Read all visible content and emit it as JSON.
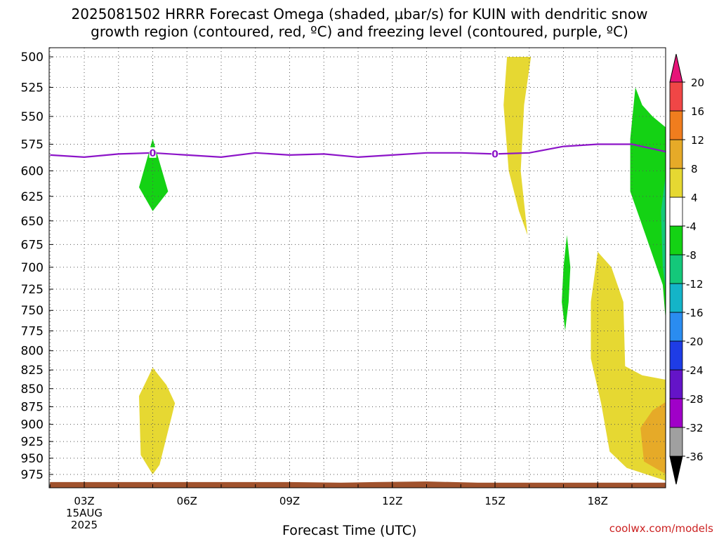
{
  "chart_data": {
    "type": "heatmap",
    "title_line1": "2025081502 HRRR Forecast Omega (shaded, μbar/s) for KUIN with dendritic snow",
    "title_line2": "growth region (contoured, red, ºC) and freezing level (contoured, purple, ºC)",
    "xlabel": "Forecast Time (UTC)",
    "credit": "coolwx.com/models",
    "date_label": [
      "15AUG",
      "2025"
    ],
    "x_ticks": [
      {
        "label": "03Z",
        "hour": 3
      },
      {
        "label": "06Z",
        "hour": 6
      },
      {
        "label": "09Z",
        "hour": 9
      },
      {
        "label": "12Z",
        "hour": 12
      },
      {
        "label": "15Z",
        "hour": 15
      },
      {
        "label": "18Z",
        "hour": 18
      }
    ],
    "x_range_hours": [
      2,
      20
    ],
    "y_ticks": [
      "500",
      "525",
      "550",
      "575",
      "600",
      "625",
      "650",
      "675",
      "700",
      "725",
      "750",
      "775",
      "800",
      "825",
      "850",
      "875",
      "900",
      "925",
      "950",
      "975"
    ],
    "y_range_mb": [
      500,
      1000
    ],
    "grid": true,
    "colorbar": {
      "placement": "right",
      "colors": [
        {
          "color": "#a0a0a0"
        },
        {
          "color": "#a000c8"
        },
        {
          "color": "#6414c8"
        },
        {
          "color": "#1e3ce6"
        },
        {
          "color": "#2a8cf0"
        },
        {
          "color": "#14b4c8"
        },
        {
          "color": "#14c87a"
        },
        {
          "color": "#14d214"
        },
        {
          "color": "#ffffff"
        },
        {
          "color": "#e6d832"
        },
        {
          "color": "#e6aa28"
        },
        {
          "color": "#f07d1e"
        },
        {
          "color": "#f04646"
        },
        {
          "color": "#e61478"
        }
      ],
      "labels": [
        "-36",
        "-32",
        "-28",
        "-24",
        "-20",
        "-16",
        "-12",
        "-8",
        "-4",
        "4",
        "8",
        "12",
        "16",
        "20"
      ],
      "under_color": "#000000",
      "over_color": "#e61478"
    },
    "freezing_level": {
      "contour_label": "0",
      "color": "#8c14c8",
      "points": [
        {
          "hour": 2.0,
          "p": 585
        },
        {
          "hour": 3.0,
          "p": 587
        },
        {
          "hour": 4.0,
          "p": 584
        },
        {
          "hour": 5.0,
          "p": 583
        },
        {
          "hour": 6.0,
          "p": 585
        },
        {
          "hour": 7.0,
          "p": 587
        },
        {
          "hour": 8.0,
          "p": 583
        },
        {
          "hour": 9.0,
          "p": 585
        },
        {
          "hour": 10.0,
          "p": 584
        },
        {
          "hour": 11.0,
          "p": 587
        },
        {
          "hour": 12.0,
          "p": 585
        },
        {
          "hour": 13.0,
          "p": 583
        },
        {
          "hour": 14.0,
          "p": 583
        },
        {
          "hour": 15.0,
          "p": 584
        },
        {
          "hour": 16.0,
          "p": 583
        },
        {
          "hour": 17.0,
          "p": 577
        },
        {
          "hour": 18.0,
          "p": 575
        },
        {
          "hour": 19.0,
          "p": 575
        },
        {
          "hour": 20.0,
          "p": 582
        }
      ]
    },
    "omega_regions": [
      {
        "band": "-8 to -4",
        "color": "#14d214",
        "points": [
          [
            5.0,
            570
          ],
          [
            4.6,
            616
          ],
          [
            5.0,
            640
          ],
          [
            5.45,
            620
          ]
        ]
      },
      {
        "band": "4 to 8",
        "color": "#e6d832",
        "points": [
          [
            5.0,
            822
          ],
          [
            4.6,
            860
          ],
          [
            4.65,
            945
          ],
          [
            5.0,
            975
          ],
          [
            5.2,
            960
          ],
          [
            5.65,
            870
          ],
          [
            5.4,
            845
          ]
        ]
      },
      {
        "band": "4 to 8",
        "color": "#e6d832",
        "points": [
          [
            15.6,
            500
          ],
          [
            16.05,
            500
          ],
          [
            15.85,
            540
          ],
          [
            15.75,
            600
          ],
          [
            15.95,
            665
          ],
          [
            15.7,
            640
          ],
          [
            15.4,
            600
          ],
          [
            15.25,
            540
          ],
          [
            15.35,
            500
          ]
        ]
      },
      {
        "band": "-8 to -4",
        "color": "#14d214",
        "points": [
          [
            17.1,
            665
          ],
          [
            17.0,
            700
          ],
          [
            16.95,
            740
          ],
          [
            17.05,
            775
          ],
          [
            17.15,
            740
          ],
          [
            17.2,
            700
          ]
        ]
      },
      {
        "band": "4 to 8",
        "color": "#e6d832",
        "points": [
          [
            18.0,
            683
          ],
          [
            17.8,
            740
          ],
          [
            17.8,
            810
          ],
          [
            18.1,
            870
          ],
          [
            18.35,
            940
          ],
          [
            18.85,
            965
          ],
          [
            20.0,
            985
          ],
          [
            20.0,
            838
          ],
          [
            19.3,
            832
          ],
          [
            18.8,
            820
          ],
          [
            18.75,
            740
          ],
          [
            18.4,
            700
          ]
        ]
      },
      {
        "band": "8 to 12",
        "color": "#e6aa28",
        "points": [
          [
            20.0,
            868
          ],
          [
            19.6,
            880
          ],
          [
            19.25,
            905
          ],
          [
            19.35,
            955
          ],
          [
            20.0,
            975
          ]
        ]
      },
      {
        "band": "-8 to -4",
        "color": "#14d214",
        "points": [
          [
            19.1,
            525
          ],
          [
            18.95,
            570
          ],
          [
            18.95,
            620
          ],
          [
            19.4,
            665
          ],
          [
            19.9,
            720
          ],
          [
            20.0,
            770
          ],
          [
            20.0,
            560
          ],
          [
            19.6,
            550
          ],
          [
            19.3,
            540
          ]
        ]
      },
      {
        "band": "-12 to -8",
        "color": "#14c87a",
        "points": [
          [
            20.0,
            600
          ],
          [
            19.85,
            640
          ],
          [
            19.9,
            700
          ],
          [
            20.0,
            730
          ]
        ]
      }
    ],
    "terrain": {
      "color": "#a0522d",
      "points": [
        {
          "hour": 2.0,
          "p": 987
        },
        {
          "hour": 6.0,
          "p": 987
        },
        {
          "hour": 9.0,
          "p": 987
        },
        {
          "hour": 10.5,
          "p": 988
        },
        {
          "hour": 11.5,
          "p": 987
        },
        {
          "hour": 13.0,
          "p": 986
        },
        {
          "hour": 14.5,
          "p": 988
        },
        {
          "hour": 20.0,
          "p": 988
        }
      ]
    }
  }
}
